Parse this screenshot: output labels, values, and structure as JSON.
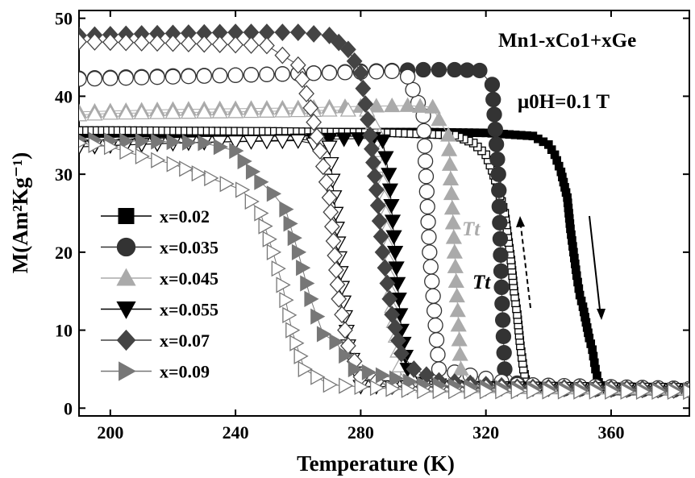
{
  "chart_data": {
    "type": "scatter",
    "title": "",
    "xlabel": "Temperature (K)",
    "ylabel": "M(Am²Kg⁻¹)",
    "xlim": [
      190,
      385
    ],
    "ylim": [
      -1,
      51
    ],
    "xticks": [
      200,
      240,
      280,
      320,
      360
    ],
    "yticks": [
      0,
      10,
      20,
      30,
      40,
      50
    ],
    "legend_position": "center-left",
    "annotations": {
      "composition": "Mn1-xCo1+xGe",
      "field": "μ0H=0.1 T",
      "tt_upper": "Tt",
      "tt_lower": "Tt"
    },
    "series": [
      {
        "name": "x=0.02",
        "marker": "square",
        "color": "#000000",
        "heating": [
          [
            190,
            35.2
          ],
          [
            220,
            35.3
          ],
          [
            260,
            35.4
          ],
          [
            300,
            35.4
          ],
          [
            320,
            35.3
          ],
          [
            335,
            34.9
          ],
          [
            340,
            33.8
          ],
          [
            342,
            32.5
          ],
          [
            344,
            30.3
          ],
          [
            346,
            27
          ],
          [
            347,
            23
          ],
          [
            348,
            20
          ],
          [
            349,
            17
          ],
          [
            350,
            14.5
          ],
          [
            351,
            13
          ],
          [
            352,
            11
          ],
          [
            353,
            9
          ],
          [
            354,
            7.5
          ],
          [
            355,
            5
          ],
          [
            356,
            3.3
          ],
          [
            358,
            2.5
          ],
          [
            362,
            2.2
          ],
          [
            370,
            2.2
          ],
          [
            385,
            2.2
          ]
        ],
        "cooling": [
          [
            385,
            2.3
          ],
          [
            360,
            2.3
          ],
          [
            340,
            2.4
          ],
          [
            333,
            3
          ],
          [
            332,
            5
          ],
          [
            331,
            8
          ],
          [
            330,
            12
          ],
          [
            329,
            15
          ],
          [
            328,
            19
          ],
          [
            327,
            22
          ],
          [
            326,
            25
          ],
          [
            324,
            28
          ],
          [
            322,
            30.5
          ],
          [
            320,
            32.5
          ],
          [
            316,
            34
          ],
          [
            310,
            35
          ],
          [
            290,
            35.3
          ],
          [
            250,
            35.5
          ],
          [
            200,
            35.6
          ],
          [
            190,
            35.6
          ]
        ]
      },
      {
        "name": "x=0.035",
        "marker": "circle",
        "color": "#333333",
        "heating": [
          [
            190,
            42.3
          ],
          [
            200,
            42.4
          ],
          [
            220,
            42.6
          ],
          [
            240,
            42.7
          ],
          [
            260,
            42.9
          ],
          [
            280,
            43.2
          ],
          [
            300,
            43.4
          ],
          [
            310,
            43.4
          ],
          [
            318,
            43.3
          ],
          [
            322,
            41.5
          ],
          [
            324,
            30
          ],
          [
            325,
            15.5
          ],
          [
            326,
            5
          ],
          [
            330,
            3.2
          ],
          [
            345,
            2.5
          ],
          [
            385,
            2.3
          ]
        ],
        "cooling": [
          [
            385,
            2.5
          ],
          [
            330,
            3
          ],
          [
            305,
            5
          ],
          [
            302,
            20
          ],
          [
            300,
            37.5
          ],
          [
            295,
            42.5
          ],
          [
            290,
            43.2
          ],
          [
            270,
            43
          ],
          [
            240,
            42.7
          ],
          [
            200,
            42.3
          ],
          [
            190,
            42.2
          ]
        ]
      },
      {
        "name": "x=0.045",
        "marker": "triangle-up",
        "color": "#aaaaaa",
        "heating": [
          [
            190,
            38
          ],
          [
            200,
            38.1
          ],
          [
            220,
            38.3
          ],
          [
            240,
            38.4
          ],
          [
            260,
            38.5
          ],
          [
            280,
            38.7
          ],
          [
            295,
            38.8
          ],
          [
            303,
            38.6
          ],
          [
            305,
            37
          ],
          [
            308,
            35
          ],
          [
            310,
            20
          ],
          [
            312,
            5
          ],
          [
            316,
            3
          ],
          [
            330,
            2.6
          ],
          [
            385,
            2.5
          ]
        ],
        "cooling": [
          [
            385,
            2.5
          ],
          [
            300,
            2.8
          ],
          [
            293,
            3.5
          ],
          [
            290,
            13
          ],
          [
            288,
            25
          ],
          [
            286,
            35
          ],
          [
            282,
            38.2
          ],
          [
            270,
            38.2
          ],
          [
            240,
            38
          ],
          [
            200,
            37.8
          ],
          [
            190,
            37.6
          ]
        ]
      },
      {
        "name": "x=0.055",
        "marker": "triangle-down",
        "color": "#000000",
        "heating": [
          [
            190,
            33.5
          ],
          [
            220,
            34
          ],
          [
            250,
            34.3
          ],
          [
            270,
            34.5
          ],
          [
            284,
            34.6
          ],
          [
            287,
            34.3
          ],
          [
            289,
            30
          ],
          [
            291,
            20
          ],
          [
            293,
            10
          ],
          [
            295,
            5
          ],
          [
            300,
            3.2
          ],
          [
            315,
            2.6
          ],
          [
            385,
            2.3
          ]
        ],
        "cooling": [
          [
            385,
            2.4
          ],
          [
            280,
            2.8
          ],
          [
            276,
            8
          ],
          [
            274,
            15.5
          ],
          [
            272,
            25
          ],
          [
            270,
            33.5
          ],
          [
            260,
            34.3
          ],
          [
            230,
            34.1
          ],
          [
            200,
            33.7
          ],
          [
            190,
            33.5
          ]
        ]
      },
      {
        "name": "x=0.07",
        "marker": "diamond",
        "color": "#444444",
        "heating": [
          [
            190,
            47.8
          ],
          [
            210,
            48
          ],
          [
            240,
            48.2
          ],
          [
            260,
            48.2
          ],
          [
            270,
            47.8
          ],
          [
            276,
            46
          ],
          [
            280,
            43
          ],
          [
            283,
            35
          ],
          [
            285,
            28
          ],
          [
            287,
            20
          ],
          [
            290,
            12
          ],
          [
            293,
            7
          ],
          [
            297,
            5
          ],
          [
            305,
            3.5
          ],
          [
            330,
            2.7
          ],
          [
            385,
            2.4
          ]
        ],
        "cooling": [
          [
            385,
            2.3
          ],
          [
            290,
            2.8
          ],
          [
            280,
            4
          ],
          [
            276,
            8
          ],
          [
            273,
            14
          ],
          [
            270,
            27
          ],
          [
            267,
            33
          ],
          [
            264,
            38.5
          ],
          [
            260,
            44
          ],
          [
            250,
            46.5
          ],
          [
            220,
            46.8
          ],
          [
            190,
            47
          ]
        ]
      },
      {
        "name": "x=0.09",
        "marker": "triangle-right",
        "color": "#777777",
        "heating": [
          [
            190,
            34.5
          ],
          [
            200,
            34.3
          ],
          [
            215,
            34.2
          ],
          [
            230,
            34
          ],
          [
            240,
            33
          ],
          [
            248,
            29
          ],
          [
            252,
            27.5
          ],
          [
            256,
            25.5
          ],
          [
            260,
            20
          ],
          [
            264,
            14
          ],
          [
            268,
            9.5
          ],
          [
            272,
            8.5
          ],
          [
            278,
            5
          ],
          [
            300,
            3
          ],
          [
            330,
            2.5
          ],
          [
            385,
            2.3
          ]
        ],
        "cooling": [
          [
            385,
            2.1
          ],
          [
            300,
            2.2
          ],
          [
            270,
            3
          ],
          [
            262,
            5
          ],
          [
            258,
            10
          ],
          [
            255,
            15.8
          ],
          [
            252,
            20
          ],
          [
            248,
            25
          ],
          [
            242,
            28
          ],
          [
            232,
            29.5
          ],
          [
            220,
            31.3
          ],
          [
            210,
            32.3
          ],
          [
            200,
            33.5
          ],
          [
            190,
            34
          ]
        ]
      }
    ]
  }
}
